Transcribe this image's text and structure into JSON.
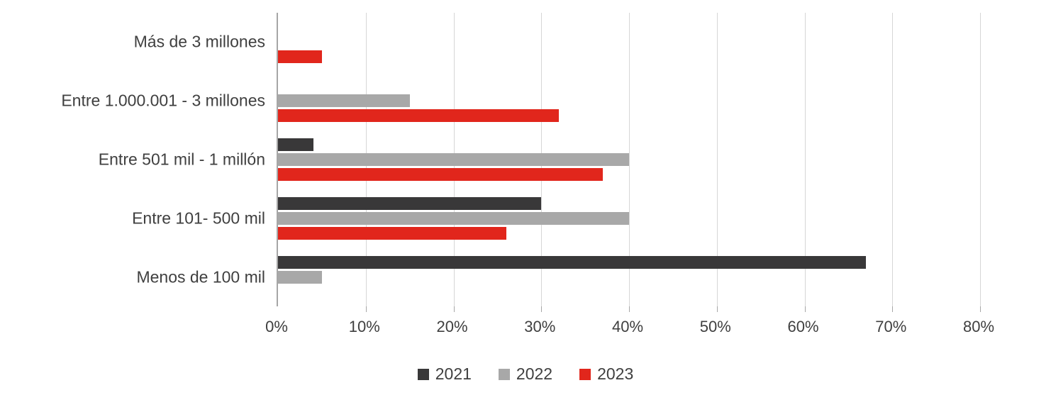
{
  "chart_data": {
    "type": "bar",
    "orientation": "horizontal",
    "title": "",
    "xlabel": "",
    "ylabel": "",
    "categories": [
      "Más de 3 millones",
      "Entre 1.000.001 - 3 millones",
      "Entre 501 mil - 1 millón",
      "Entre 101- 500 mil",
      "Menos de 100 mil"
    ],
    "series": [
      {
        "name": "2021",
        "color": "#393839",
        "values": [
          0,
          0,
          4,
          30,
          67
        ]
      },
      {
        "name": "2022",
        "color": "#a8a8a8",
        "values": [
          0,
          15,
          40,
          40,
          5
        ]
      },
      {
        "name": "2023",
        "color": "#e1261c",
        "values": [
          5,
          32,
          37,
          26,
          0
        ]
      }
    ],
    "x_ticks": [
      "0%",
      "10%",
      "20%",
      "30%",
      "40%",
      "50%",
      "60%",
      "70%",
      "80%"
    ],
    "xlim": [
      0,
      80
    ],
    "grid": true,
    "legend_position": "bottom"
  },
  "style_colors": {
    "gridline": "#d6d6d6",
    "axis_line": "#a6a6a6",
    "text": "#3f3f3f",
    "background": "#ffffff"
  }
}
